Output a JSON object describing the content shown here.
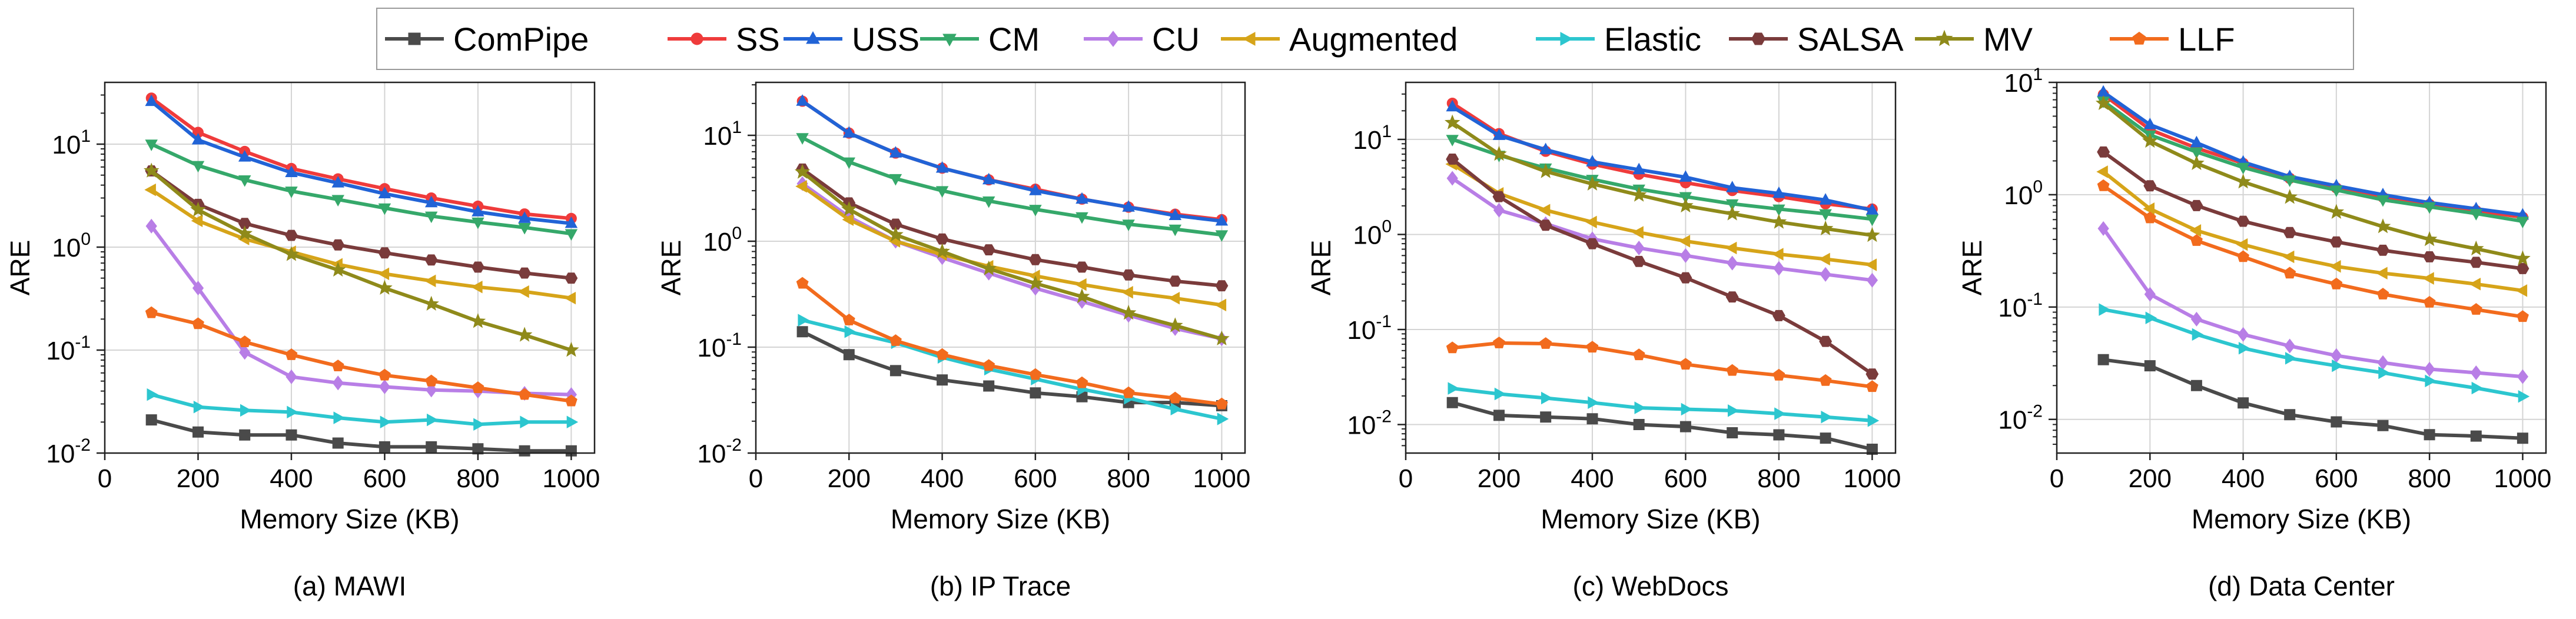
{
  "legend": [
    {
      "name": "ComPipe",
      "color": "#4a4a4a",
      "marker": "square"
    },
    {
      "name": "SS",
      "color": "#ef3b3b",
      "marker": "circle"
    },
    {
      "name": "USS",
      "color": "#2163d6",
      "marker": "triangle-up"
    },
    {
      "name": "CM",
      "color": "#35a86a",
      "marker": "triangle-down"
    },
    {
      "name": "CU",
      "color": "#b87ee6",
      "marker": "diamond"
    },
    {
      "name": "Augmented",
      "color": "#d6a419",
      "marker": "triangle-left"
    },
    {
      "name": "Elastic",
      "color": "#2cc6cf",
      "marker": "triangle-right"
    },
    {
      "name": "SALSA",
      "color": "#7a3b3b",
      "marker": "hexagon"
    },
    {
      "name": "MV",
      "color": "#8f8a1a",
      "marker": "star"
    },
    {
      "name": "LLF",
      "color": "#f26b1d",
      "marker": "pentagon"
    }
  ],
  "chart_data": [
    {
      "type": "line",
      "title": "(a) MAWI",
      "xlabel": "Memory Size (KB)",
      "ylabel": "ARE",
      "xlim": [
        0,
        1050
      ],
      "ylim_log10": [
        -2,
        1.6
      ],
      "x_ticks": [
        0,
        200,
        400,
        600,
        800,
        1000
      ],
      "y_ticks": [
        {
          "exp": -2,
          "label": "10",
          "sup": "-2"
        },
        {
          "exp": -1,
          "label": "10",
          "sup": "-1"
        },
        {
          "exp": 0,
          "label": "10",
          "sup": "0"
        },
        {
          "exp": 1,
          "label": "10",
          "sup": "1"
        }
      ],
      "x": [
        100,
        200,
        300,
        400,
        500,
        600,
        700,
        800,
        900,
        1000
      ],
      "series": [
        {
          "name": "ComPipe",
          "values": [
            0.021,
            0.016,
            0.015,
            0.015,
            0.0125,
            0.0115,
            0.0115,
            0.011,
            0.0105,
            0.0105
          ]
        },
        {
          "name": "SS",
          "values": [
            28,
            13,
            8.5,
            5.8,
            4.6,
            3.7,
            3.0,
            2.5,
            2.1,
            1.9
          ]
        },
        {
          "name": "USS",
          "values": [
            26,
            11,
            7.5,
            5.3,
            4.2,
            3.3,
            2.7,
            2.2,
            1.9,
            1.7
          ]
        },
        {
          "name": "CM",
          "values": [
            10,
            6.2,
            4.5,
            3.5,
            2.9,
            2.4,
            2.0,
            1.75,
            1.55,
            1.35
          ]
        },
        {
          "name": "CU",
          "values": [
            1.6,
            0.4,
            0.095,
            0.055,
            0.048,
            0.044,
            0.041,
            0.04,
            0.038,
            0.037
          ]
        },
        {
          "name": "Augmented",
          "values": [
            3.6,
            1.8,
            1.2,
            0.9,
            0.68,
            0.55,
            0.47,
            0.41,
            0.37,
            0.32
          ]
        },
        {
          "name": "Elastic",
          "values": [
            0.037,
            0.028,
            0.026,
            0.025,
            0.022,
            0.02,
            0.021,
            0.019,
            0.02,
            0.02
          ]
        },
        {
          "name": "SALSA",
          "values": [
            5.5,
            2.6,
            1.7,
            1.3,
            1.05,
            0.88,
            0.75,
            0.64,
            0.56,
            0.5
          ]
        },
        {
          "name": "MV",
          "values": [
            5.5,
            2.3,
            1.35,
            0.85,
            0.6,
            0.4,
            0.28,
            0.19,
            0.14,
            0.1
          ]
        },
        {
          "name": "LLF",
          "values": [
            0.23,
            0.18,
            0.12,
            0.09,
            0.07,
            0.057,
            0.05,
            0.043,
            0.037,
            0.032
          ]
        }
      ]
    },
    {
      "type": "line",
      "title": "(b) IP Trace",
      "xlabel": "Memory Size (KB)",
      "ylabel": "ARE",
      "xlim": [
        0,
        1050
      ],
      "ylim_log10": [
        -2,
        1.5
      ],
      "x_ticks": [
        0,
        200,
        400,
        600,
        800,
        1000
      ],
      "y_ticks": [
        {
          "exp": -2,
          "label": "10",
          "sup": "-2"
        },
        {
          "exp": -1,
          "label": "10",
          "sup": "-1"
        },
        {
          "exp": 0,
          "label": "10",
          "sup": "0"
        },
        {
          "exp": 1,
          "label": "10",
          "sup": "1"
        }
      ],
      "x": [
        100,
        200,
        300,
        400,
        500,
        600,
        700,
        800,
        900,
        1000
      ],
      "series": [
        {
          "name": "ComPipe",
          "values": [
            0.14,
            0.085,
            0.06,
            0.049,
            0.043,
            0.037,
            0.034,
            0.03,
            0.03,
            0.028
          ]
        },
        {
          "name": "SS",
          "values": [
            21,
            10.5,
            6.8,
            4.9,
            3.8,
            3.1,
            2.5,
            2.1,
            1.8,
            1.6
          ]
        },
        {
          "name": "USS",
          "values": [
            21,
            10.5,
            6.8,
            4.9,
            3.8,
            3.0,
            2.5,
            2.1,
            1.75,
            1.55
          ]
        },
        {
          "name": "CM",
          "values": [
            9.5,
            5.6,
            3.9,
            3.0,
            2.4,
            2.0,
            1.7,
            1.45,
            1.3,
            1.15
          ]
        },
        {
          "name": "CU",
          "values": [
            3.5,
            1.7,
            1.0,
            0.7,
            0.5,
            0.36,
            0.27,
            0.2,
            0.15,
            0.12
          ]
        },
        {
          "name": "Augmented",
          "values": [
            3.3,
            1.6,
            1.0,
            0.75,
            0.58,
            0.47,
            0.39,
            0.33,
            0.29,
            0.25
          ]
        },
        {
          "name": "Elastic",
          "values": [
            0.18,
            0.14,
            0.11,
            0.08,
            0.062,
            0.05,
            0.04,
            0.033,
            0.026,
            0.021
          ]
        },
        {
          "name": "SALSA",
          "values": [
            4.8,
            2.3,
            1.45,
            1.05,
            0.83,
            0.67,
            0.57,
            0.48,
            0.42,
            0.38
          ]
        },
        {
          "name": "MV",
          "values": [
            4.5,
            2.0,
            1.15,
            0.8,
            0.55,
            0.4,
            0.3,
            0.21,
            0.16,
            0.12
          ]
        },
        {
          "name": "LLF",
          "values": [
            0.4,
            0.18,
            0.115,
            0.085,
            0.067,
            0.055,
            0.046,
            0.037,
            0.033,
            0.029
          ]
        }
      ]
    },
    {
      "type": "line",
      "title": "(c) WebDocs",
      "xlabel": "Memory Size (KB)",
      "ylabel": "ARE",
      "xlim": [
        0,
        1050
      ],
      "ylim_log10": [
        -2.3,
        1.6
      ],
      "x_ticks": [
        0,
        200,
        400,
        600,
        800,
        1000
      ],
      "y_ticks": [
        {
          "exp": -2,
          "label": "10",
          "sup": "-2"
        },
        {
          "exp": -1,
          "label": "10",
          "sup": "-1"
        },
        {
          "exp": 0,
          "label": "10",
          "sup": "0"
        },
        {
          "exp": 1,
          "label": "10",
          "sup": "1"
        }
      ],
      "x": [
        100,
        200,
        300,
        400,
        500,
        600,
        700,
        800,
        900,
        1000
      ],
      "series": [
        {
          "name": "ComPipe",
          "values": [
            0.017,
            0.0125,
            0.012,
            0.0115,
            0.01,
            0.0095,
            0.0082,
            0.0078,
            0.0072,
            0.0055
          ]
        },
        {
          "name": "SS",
          "values": [
            24,
            11.5,
            7.5,
            5.5,
            4.3,
            3.5,
            2.9,
            2.5,
            2.1,
            1.85
          ]
        },
        {
          "name": "USS",
          "values": [
            22,
            11,
            7.8,
            5.8,
            4.8,
            4.0,
            3.1,
            2.7,
            2.3,
            1.8
          ]
        },
        {
          "name": "CM",
          "values": [
            10,
            6.8,
            5.0,
            3.8,
            3.0,
            2.5,
            2.1,
            1.85,
            1.65,
            1.45
          ]
        },
        {
          "name": "CU",
          "values": [
            3.9,
            1.8,
            1.3,
            0.9,
            0.72,
            0.6,
            0.5,
            0.44,
            0.38,
            0.33
          ]
        },
        {
          "name": "Augmented",
          "values": [
            5.5,
            2.7,
            1.8,
            1.35,
            1.05,
            0.85,
            0.72,
            0.62,
            0.55,
            0.48
          ]
        },
        {
          "name": "Elastic",
          "values": [
            0.024,
            0.021,
            0.019,
            0.017,
            0.015,
            0.0145,
            0.014,
            0.013,
            0.012,
            0.011
          ]
        },
        {
          "name": "SALSA",
          "values": [
            6.2,
            2.5,
            1.25,
            0.8,
            0.52,
            0.35,
            0.22,
            0.14,
            0.075,
            0.034
          ]
        },
        {
          "name": "MV",
          "values": [
            15,
            7.0,
            4.6,
            3.4,
            2.6,
            2.0,
            1.65,
            1.35,
            1.15,
            0.98
          ]
        },
        {
          "name": "LLF",
          "values": [
            0.064,
            0.072,
            0.071,
            0.065,
            0.054,
            0.043,
            0.037,
            0.033,
            0.029,
            0.025
          ]
        }
      ]
    },
    {
      "type": "line",
      "title": "(d) Data Center",
      "xlabel": "Memory Size (KB)",
      "ylabel": "ARE",
      "xlim": [
        0,
        1050
      ],
      "ylim_log10": [
        -2.3,
        1.0
      ],
      "x_ticks": [
        0,
        200,
        400,
        600,
        800,
        1000
      ],
      "y_ticks": [
        {
          "exp": -2,
          "label": "10",
          "sup": "-2"
        },
        {
          "exp": -1,
          "label": "10",
          "sup": "-1"
        },
        {
          "exp": 0,
          "label": "10",
          "sup": "0"
        },
        {
          "exp": 1,
          "label": "10",
          "sup": "1"
        }
      ],
      "x": [
        100,
        200,
        300,
        400,
        500,
        600,
        700,
        800,
        900,
        1000
      ],
      "series": [
        {
          "name": "ComPipe",
          "values": [
            0.034,
            0.03,
            0.02,
            0.014,
            0.011,
            0.0095,
            0.0088,
            0.0073,
            0.0071,
            0.0068
          ]
        },
        {
          "name": "SS",
          "values": [
            7.8,
            3.8,
            2.6,
            1.9,
            1.4,
            1.15,
            0.95,
            0.82,
            0.72,
            0.63
          ]
        },
        {
          "name": "USS",
          "values": [
            8.2,
            4.2,
            2.9,
            1.95,
            1.45,
            1.2,
            1.0,
            0.85,
            0.75,
            0.66
          ]
        },
        {
          "name": "CM",
          "values": [
            6.8,
            3.4,
            2.4,
            1.75,
            1.35,
            1.1,
            0.9,
            0.78,
            0.68,
            0.58
          ]
        },
        {
          "name": "CU",
          "values": [
            0.5,
            0.13,
            0.078,
            0.057,
            0.045,
            0.037,
            0.032,
            0.028,
            0.026,
            0.024
          ]
        },
        {
          "name": "Augmented",
          "values": [
            1.6,
            0.75,
            0.48,
            0.36,
            0.28,
            0.23,
            0.2,
            0.18,
            0.16,
            0.14
          ]
        },
        {
          "name": "Elastic",
          "values": [
            0.095,
            0.08,
            0.057,
            0.043,
            0.035,
            0.03,
            0.026,
            0.022,
            0.019,
            0.016
          ]
        },
        {
          "name": "SALSA",
          "values": [
            2.4,
            1.2,
            0.8,
            0.58,
            0.46,
            0.38,
            0.32,
            0.28,
            0.25,
            0.22
          ]
        },
        {
          "name": "MV",
          "values": [
            6.5,
            3.0,
            1.9,
            1.3,
            0.95,
            0.7,
            0.52,
            0.4,
            0.33,
            0.27
          ]
        },
        {
          "name": "LLF",
          "values": [
            1.2,
            0.62,
            0.39,
            0.28,
            0.2,
            0.16,
            0.13,
            0.11,
            0.095,
            0.082
          ]
        }
      ]
    }
  ]
}
